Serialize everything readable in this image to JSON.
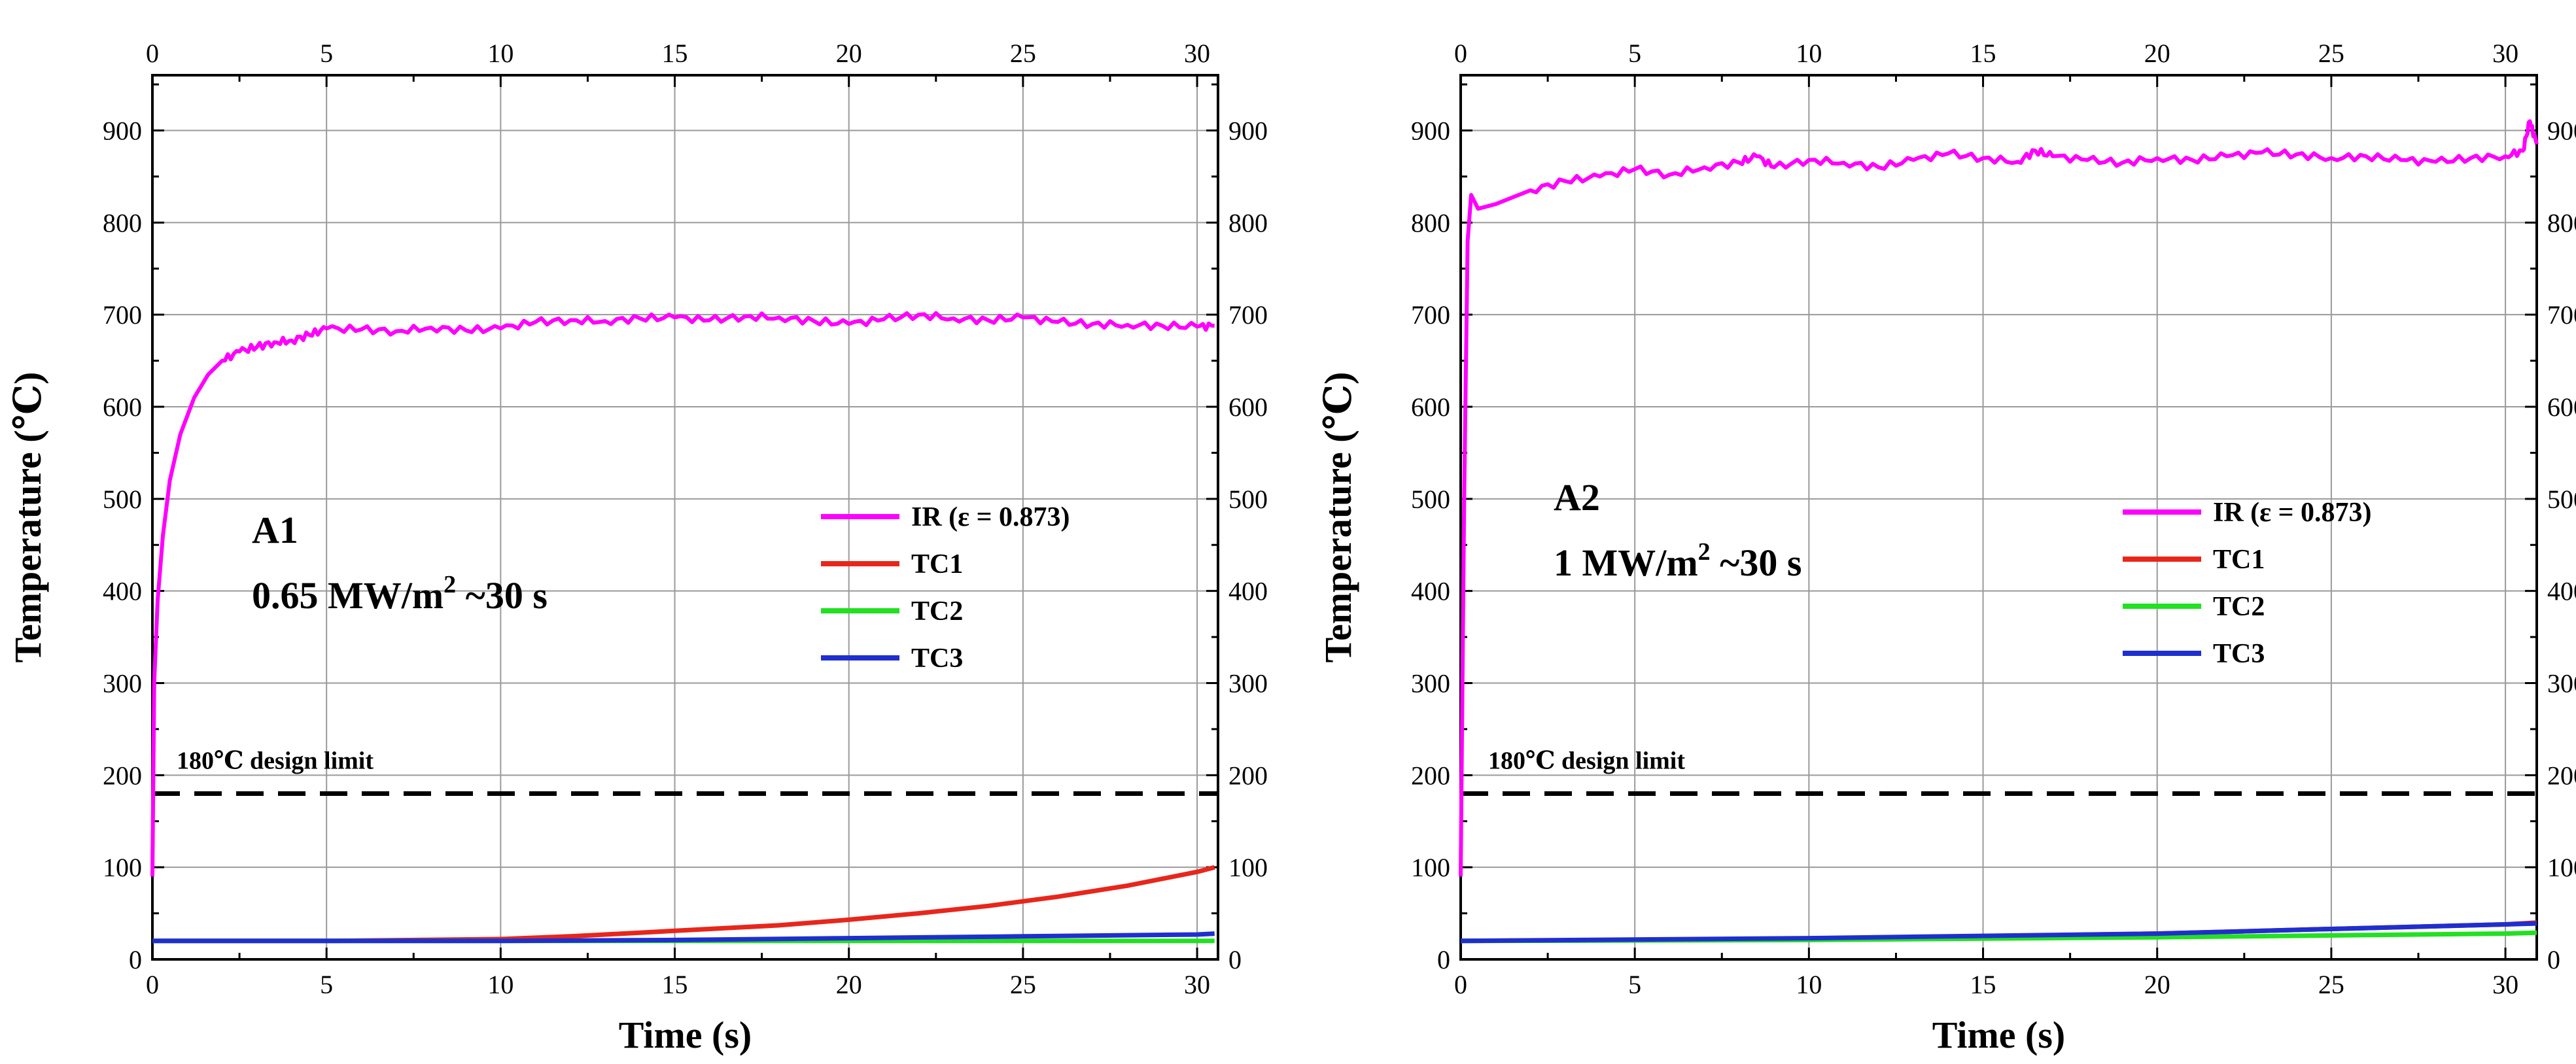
{
  "figure": {
    "description_free": true
  },
  "chart_data": [
    {
      "type": "line",
      "panel_label": "A1",
      "condition_prefix": "0.65 MW/m",
      "condition_sup": "2",
      "condition_suffix": " ~30 s",
      "xlabel": "Time (s)",
      "ylabel": "Temperature (℃)",
      "xlim": [
        0,
        30.6
      ],
      "ylim": [
        0,
        960
      ],
      "x_ticks": [
        0,
        5,
        10,
        15,
        20,
        25,
        30
      ],
      "y_ticks": [
        0,
        100,
        200,
        300,
        400,
        500,
        600,
        700,
        800,
        900
      ],
      "grid": true,
      "legend_position": "center-right",
      "design_limit": {
        "value": 180,
        "label": "180℃ design limit"
      },
      "series": [
        {
          "name": "IR (ε = 0.873)",
          "color": "#ff00ff",
          "x": [
            0,
            0.05,
            0.15,
            0.3,
            0.5,
            0.8,
            1.2,
            1.6,
            2.0,
            2.5,
            3.0,
            3.5,
            4.0,
            4.5,
            5.0,
            6,
            7,
            8,
            9,
            10,
            11,
            12,
            13,
            14,
            15,
            16,
            17,
            18,
            19,
            20,
            21,
            22,
            23,
            24,
            25,
            26,
            27,
            28,
            29,
            30,
            30.5
          ],
          "y": [
            90,
            300,
            390,
            460,
            520,
            570,
            610,
            635,
            650,
            660,
            665,
            670,
            672,
            678,
            685,
            684,
            682,
            686,
            683,
            685,
            692,
            694,
            693,
            696,
            697,
            694,
            698,
            697,
            693,
            690,
            695,
            700,
            696,
            694,
            697,
            692,
            690,
            689,
            688,
            687,
            688
          ]
        },
        {
          "name": "TC1",
          "color": "#e8261c",
          "x": [
            0,
            5,
            10,
            12,
            14,
            16,
            18,
            20,
            22,
            24,
            26,
            28,
            30,
            30.5
          ],
          "y": [
            20,
            20,
            22,
            25,
            29,
            33,
            37,
            43,
            50,
            58,
            68,
            80,
            95,
            100
          ]
        },
        {
          "name": "TC2",
          "color": "#22e022",
          "x": [
            0,
            10,
            20,
            30,
            30.5
          ],
          "y": [
            20,
            20,
            20,
            20,
            20
          ]
        },
        {
          "name": "TC3",
          "color": "#1f2fcf",
          "x": [
            0,
            10,
            15,
            20,
            25,
            30,
            30.5
          ],
          "y": [
            20,
            20,
            21,
            23,
            25,
            27,
            28
          ]
        }
      ]
    },
    {
      "type": "line",
      "panel_label": "A2",
      "condition_prefix": "1 MW/m",
      "condition_sup": "2",
      "condition_suffix": " ~30 s",
      "xlabel": "Time (s)",
      "ylabel": "Temperature (℃)",
      "xlim": [
        0,
        30.9
      ],
      "ylim": [
        0,
        960
      ],
      "x_ticks": [
        0,
        5,
        10,
        15,
        20,
        25,
        30
      ],
      "y_ticks": [
        0,
        100,
        200,
        300,
        400,
        500,
        600,
        700,
        800,
        900
      ],
      "grid": true,
      "legend_position": "center-right",
      "design_limit": {
        "value": 180,
        "label": "180℃ design limit"
      },
      "series": [
        {
          "name": "IR (ε = 0.873)",
          "color": "#ff00ff",
          "x": [
            0,
            0.1,
            0.2,
            0.3,
            0.5,
            1,
            2,
            3,
            4,
            5,
            6,
            7,
            8,
            8.5,
            9,
            10,
            11,
            12,
            13,
            14,
            15,
            16,
            16.5,
            17,
            18,
            19,
            20,
            21,
            22,
            23,
            24,
            25,
            26,
            27,
            28,
            29,
            30,
            30.5,
            30.7,
            30.9
          ],
          "y": [
            90,
            500,
            780,
            830,
            815,
            820,
            835,
            845,
            850,
            858,
            852,
            860,
            865,
            872,
            860,
            868,
            865,
            860,
            868,
            875,
            870,
            866,
            878,
            872,
            868,
            865,
            870,
            868,
            872,
            876,
            874,
            870,
            872,
            868,
            866,
            870,
            872,
            878,
            910,
            885
          ]
        },
        {
          "name": "TC1",
          "color": "#e8261c",
          "x": [
            0,
            10,
            20,
            25,
            30,
            30.9
          ],
          "y": [
            20,
            22,
            28,
            33,
            38,
            40
          ]
        },
        {
          "name": "TC2",
          "color": "#22e022",
          "x": [
            0,
            10,
            20,
            25,
            30,
            30.9
          ],
          "y": [
            20,
            21,
            24,
            26,
            28,
            29
          ]
        },
        {
          "name": "TC3",
          "color": "#1f2fcf",
          "x": [
            0,
            10,
            20,
            25,
            30,
            30.9
          ],
          "y": [
            20,
            23,
            28,
            33,
            38,
            39
          ]
        }
      ]
    }
  ]
}
